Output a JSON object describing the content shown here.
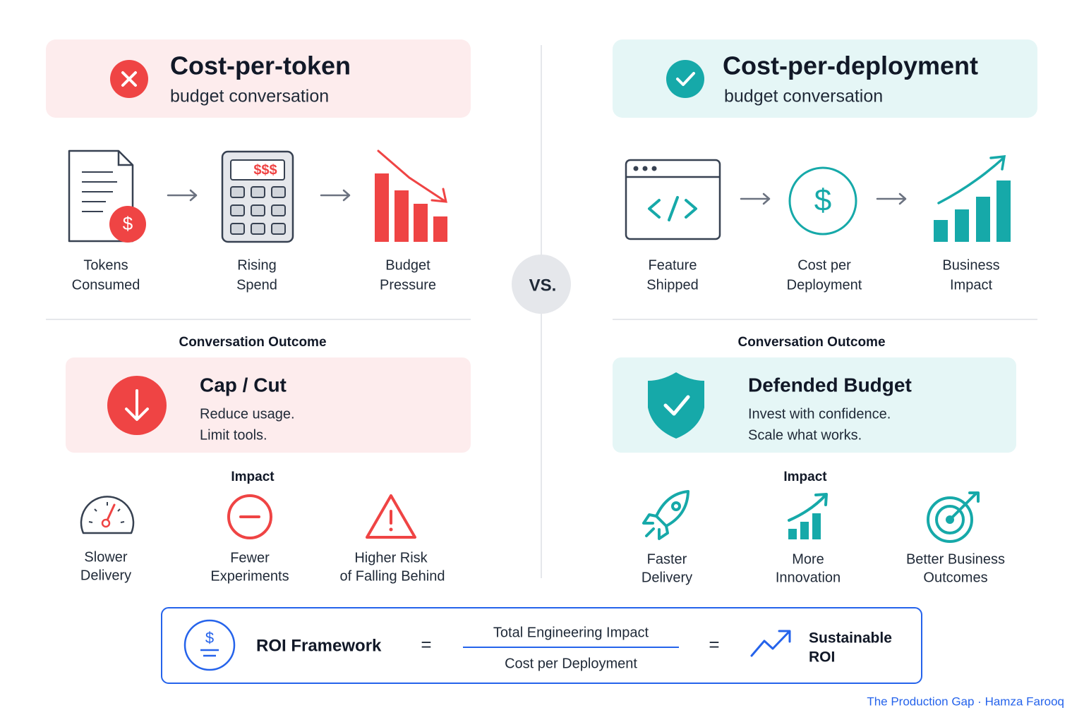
{
  "left": {
    "title": "Cost-per-token",
    "subtitle": "budget conversation",
    "flow": [
      {
        "badge": "$",
        "label": [
          "Tokens",
          "Consumed"
        ]
      },
      {
        "display": "$$$",
        "label": [
          "Rising",
          "Spend"
        ]
      },
      {
        "label": [
          "Budget",
          "Pressure"
        ]
      }
    ],
    "outcome_header": "Conversation Outcome",
    "outcome": {
      "title": "Cap / Cut",
      "lines": [
        "Reduce usage.",
        "Limit tools."
      ]
    },
    "impact_header": "Impact",
    "impacts": [
      {
        "label": [
          "Slower",
          "Delivery"
        ]
      },
      {
        "label": [
          "Fewer",
          "Experiments"
        ]
      },
      {
        "label": [
          "Higher Risk",
          "of Falling Behind"
        ]
      }
    ]
  },
  "versus": "VS.",
  "right": {
    "title": "Cost-per-deployment",
    "subtitle": "budget conversation",
    "flow": [
      {
        "label": [
          "Feature",
          "Shipped"
        ]
      },
      {
        "icon_text": "$",
        "label": [
          "Cost per",
          "Deployment"
        ]
      },
      {
        "label": [
          "Business",
          "Impact"
        ]
      }
    ],
    "outcome_header": "Conversation Outcome",
    "outcome": {
      "title": "Defended Budget",
      "lines": [
        "Invest with confidence.",
        "Scale what works."
      ]
    },
    "impact_header": "Impact",
    "impacts": [
      {
        "label": [
          "Faster",
          "Delivery"
        ]
      },
      {
        "label": [
          "More",
          "Innovation"
        ]
      },
      {
        "label": [
          "Better Business",
          "Outcomes"
        ]
      }
    ]
  },
  "footer": {
    "icon_text": "$",
    "title": "ROI Framework",
    "equals": [
      "=",
      "="
    ],
    "numerator": "Total Engineering Impact",
    "denominator": "Cost per Deployment",
    "result": [
      "Sustainable",
      "ROI"
    ]
  },
  "credit": "The Production Gap · Hamza Farooq"
}
